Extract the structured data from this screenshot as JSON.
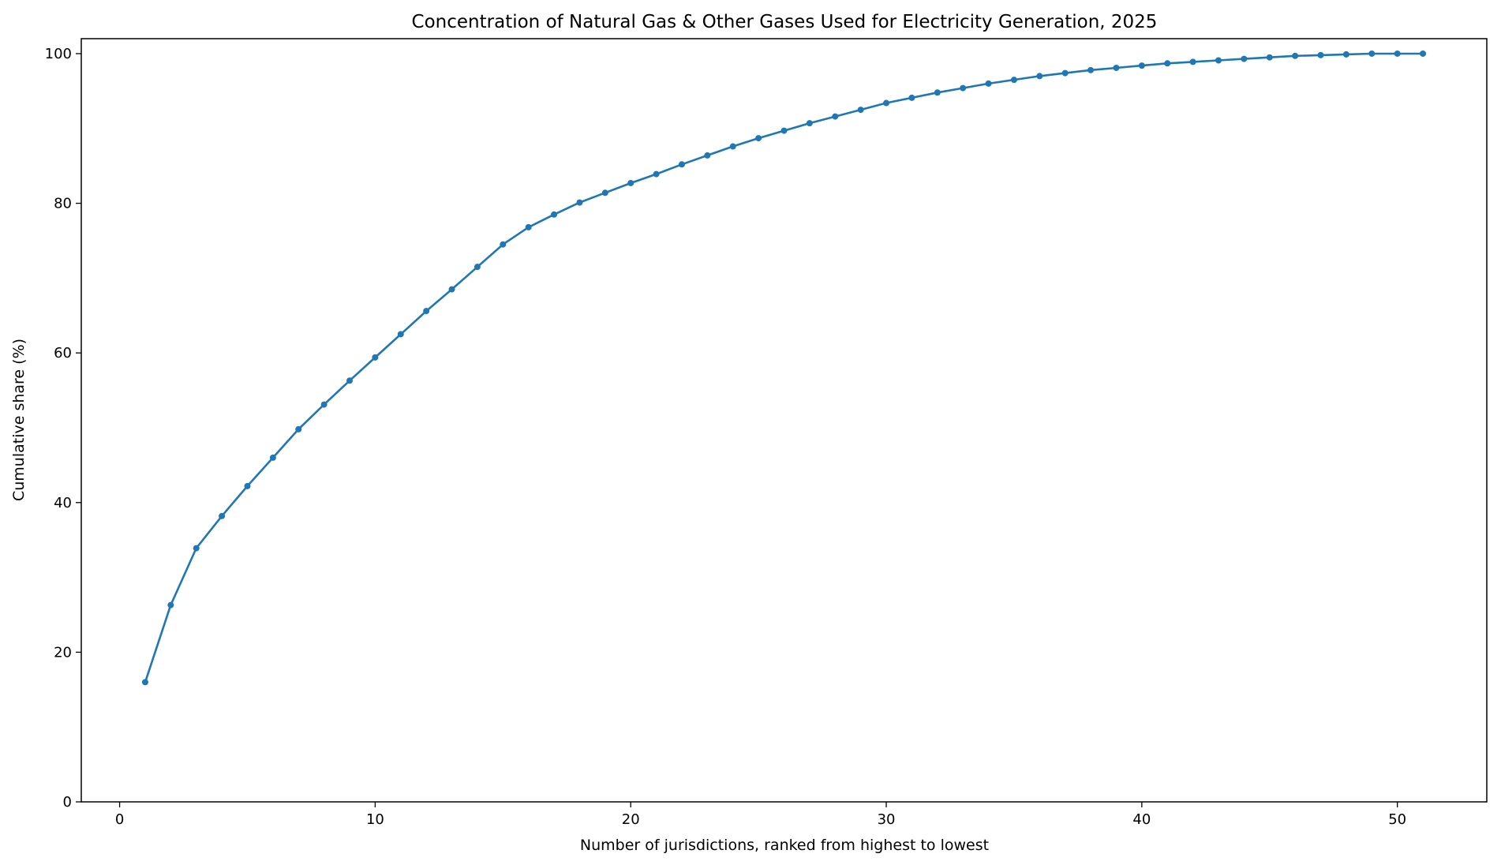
{
  "chart_data": {
    "type": "line",
    "title": "Concentration of Natural Gas & Other Gases Used for Electricity Generation, 2025",
    "xlabel": "Number of jurisdictions, ranked from highest to lowest",
    "ylabel": "Cumulative share (%)",
    "xlim": [
      -1.5,
      53.5
    ],
    "ylim": [
      0,
      102
    ],
    "xticks": [
      0,
      10,
      20,
      30,
      40,
      50
    ],
    "yticks": [
      0,
      20,
      40,
      60,
      80,
      100
    ],
    "grid": false,
    "legend": "none",
    "line_color": "#1f77b4",
    "series": [
      {
        "x": [
          1,
          2,
          3,
          4,
          5,
          6,
          7,
          8,
          9,
          10,
          11,
          12,
          13,
          14,
          15,
          16,
          17,
          18,
          19,
          20,
          21,
          22,
          23,
          24,
          25,
          26,
          27,
          28,
          29,
          30,
          31,
          32,
          33,
          34,
          35,
          36,
          37,
          38,
          39,
          40,
          41,
          42,
          43,
          44,
          45,
          46,
          47,
          48,
          49,
          50,
          51
        ],
        "values": [
          16.0,
          26.3,
          33.9,
          38.2,
          42.2,
          46.0,
          49.8,
          53.1,
          56.3,
          59.4,
          62.5,
          65.6,
          68.5,
          71.5,
          74.5,
          76.8,
          78.5,
          80.1,
          81.4,
          82.7,
          83.9,
          85.2,
          86.4,
          87.6,
          88.7,
          89.7,
          90.7,
          91.6,
          92.5,
          93.4,
          94.1,
          94.8,
          95.4,
          96.0,
          96.5,
          97.0,
          97.4,
          97.8,
          98.1,
          98.4,
          98.7,
          98.9,
          99.1,
          99.3,
          99.5,
          99.7,
          99.8,
          99.9,
          100.0,
          100.0,
          100.0
        ]
      }
    ]
  }
}
